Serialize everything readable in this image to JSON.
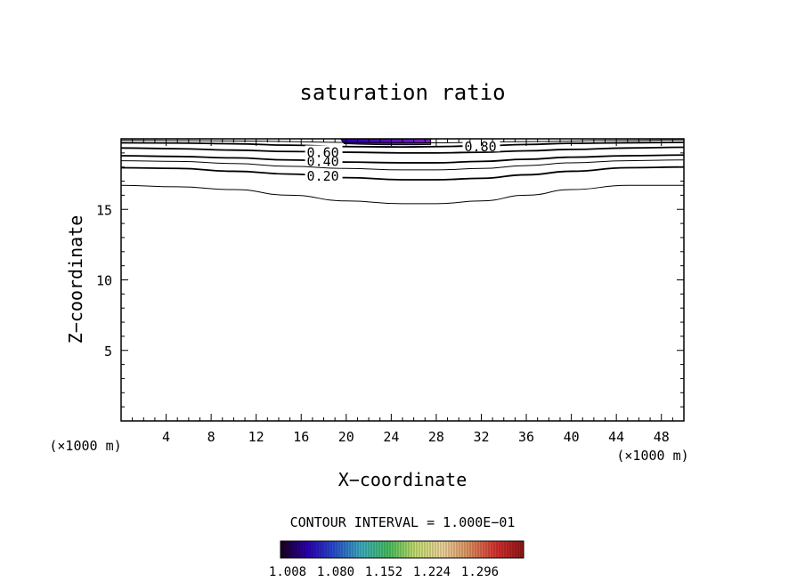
{
  "chart_data": {
    "type": "contour",
    "title": "saturation ratio",
    "xlabel": "X−coordinate",
    "ylabel": "Z−coordinate",
    "x_unit_left": "(×1000 m)",
    "x_unit_right": "(×1000 m)",
    "xlim": [
      0,
      50
    ],
    "ylim": [
      0,
      20
    ],
    "x_ticks": [
      4,
      8,
      12,
      16,
      20,
      24,
      28,
      32,
      36,
      40,
      44,
      48
    ],
    "y_ticks": [
      5,
      10,
      15
    ],
    "contour_interval_text": "CONTOUR INTERVAL = 1.000E−01",
    "contours": [
      {
        "level": 0.1,
        "label": "",
        "points": [
          [
            0,
            16.7
          ],
          [
            5,
            16.6
          ],
          [
            10,
            16.4
          ],
          [
            15,
            16.0
          ],
          [
            20,
            15.6
          ],
          [
            25,
            15.4
          ],
          [
            28,
            15.4
          ],
          [
            32,
            15.6
          ],
          [
            36,
            16.0
          ],
          [
            40,
            16.4
          ],
          [
            45,
            16.7
          ],
          [
            50,
            16.7
          ]
        ]
      },
      {
        "level": 0.2,
        "label": "0.20",
        "points": [
          [
            0,
            17.95
          ],
          [
            5,
            17.9
          ],
          [
            10,
            17.7
          ],
          [
            15,
            17.5
          ],
          [
            20,
            17.25
          ],
          [
            25,
            17.1
          ],
          [
            28,
            17.1
          ],
          [
            32,
            17.2
          ],
          [
            36,
            17.45
          ],
          [
            40,
            17.7
          ],
          [
            45,
            17.95
          ],
          [
            50,
            18.0
          ]
        ]
      },
      {
        "level": 0.3,
        "label": "",
        "points": [
          [
            0,
            18.45
          ],
          [
            5,
            18.4
          ],
          [
            10,
            18.25
          ],
          [
            15,
            18.05
          ],
          [
            20,
            17.9
          ],
          [
            25,
            17.8
          ],
          [
            28,
            17.8
          ],
          [
            32,
            17.9
          ],
          [
            36,
            18.1
          ],
          [
            40,
            18.3
          ],
          [
            45,
            18.45
          ],
          [
            50,
            18.5
          ]
        ]
      },
      {
        "level": 0.4,
        "label": "0.40",
        "points": [
          [
            0,
            18.8
          ],
          [
            5,
            18.75
          ],
          [
            10,
            18.65
          ],
          [
            15,
            18.5
          ],
          [
            20,
            18.35
          ],
          [
            25,
            18.3
          ],
          [
            28,
            18.3
          ],
          [
            32,
            18.4
          ],
          [
            36,
            18.55
          ],
          [
            40,
            18.7
          ],
          [
            45,
            18.8
          ],
          [
            50,
            18.85
          ]
        ]
      },
      {
        "level": 0.6,
        "label": "0.60",
        "points": [
          [
            0,
            19.35
          ],
          [
            5,
            19.3
          ],
          [
            10,
            19.2
          ],
          [
            15,
            19.1
          ],
          [
            20,
            19.05
          ],
          [
            25,
            19.0
          ],
          [
            28,
            19.0
          ],
          [
            32,
            19.05
          ],
          [
            36,
            19.15
          ],
          [
            40,
            19.25
          ],
          [
            45,
            19.35
          ],
          [
            50,
            19.4
          ]
        ]
      },
      {
        "level": 0.8,
        "label": "0.80",
        "points": [
          [
            0,
            19.72
          ],
          [
            5,
            19.7
          ],
          [
            10,
            19.65
          ],
          [
            15,
            19.55
          ],
          [
            20,
            19.45
          ],
          [
            25,
            19.42
          ],
          [
            28,
            19.45
          ],
          [
            32,
            19.5
          ],
          [
            36,
            19.6
          ],
          [
            40,
            19.68
          ],
          [
            45,
            19.72
          ],
          [
            50,
            19.75
          ]
        ]
      },
      {
        "level": 0.9,
        "label": "",
        "points": [
          [
            0,
            19.9
          ],
          [
            10,
            19.85
          ],
          [
            20,
            19.75
          ],
          [
            28,
            19.72
          ],
          [
            36,
            19.8
          ],
          [
            44,
            19.88
          ],
          [
            50,
            19.92
          ]
        ]
      }
    ],
    "supersaturated_region": {
      "x_range": [
        19.5,
        27.5
      ],
      "z_range": [
        19.6,
        20.0
      ],
      "color_left": "#2a00a8",
      "color_right": "#7e1ec9"
    },
    "colorbar": {
      "labels": [
        "1.008",
        "1.080",
        "1.152",
        "1.224",
        "1.296"
      ],
      "stops": [
        "#1a001a",
        "#2b00b3",
        "#2a4fd0",
        "#3fb0c0",
        "#48c060",
        "#c8e070",
        "#f0d8a0",
        "#e09060",
        "#d83030",
        "#901818"
      ]
    }
  }
}
